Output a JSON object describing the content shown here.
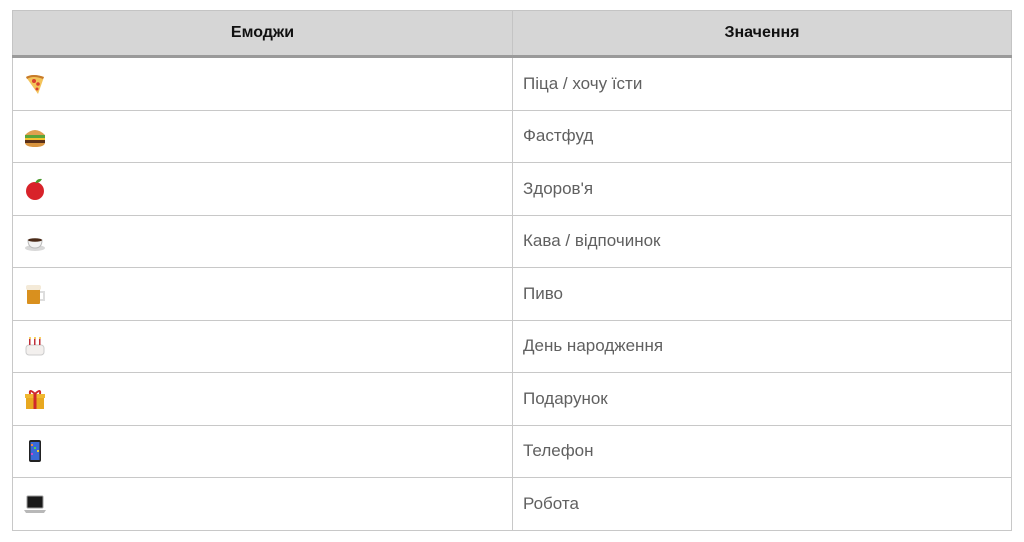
{
  "table": {
    "headers": [
      "Емоджи",
      "Значення"
    ],
    "rows": [
      {
        "emoji": "pizza-icon",
        "meaning": "Піца / хочу їсти"
      },
      {
        "emoji": "hamburger-icon",
        "meaning": "Фастфуд"
      },
      {
        "emoji": "red-apple-icon",
        "meaning": "Здоров'я"
      },
      {
        "emoji": "hot-coffee-icon",
        "meaning": "Кава / відпочинок"
      },
      {
        "emoji": "beer-mug-icon",
        "meaning": "Пиво"
      },
      {
        "emoji": "birthday-cake-icon",
        "meaning": "День народження"
      },
      {
        "emoji": "gift-icon",
        "meaning": "Подарунок"
      },
      {
        "emoji": "mobile-phone-icon",
        "meaning": "Телефон"
      },
      {
        "emoji": "laptop-icon",
        "meaning": "Робота"
      }
    ]
  }
}
